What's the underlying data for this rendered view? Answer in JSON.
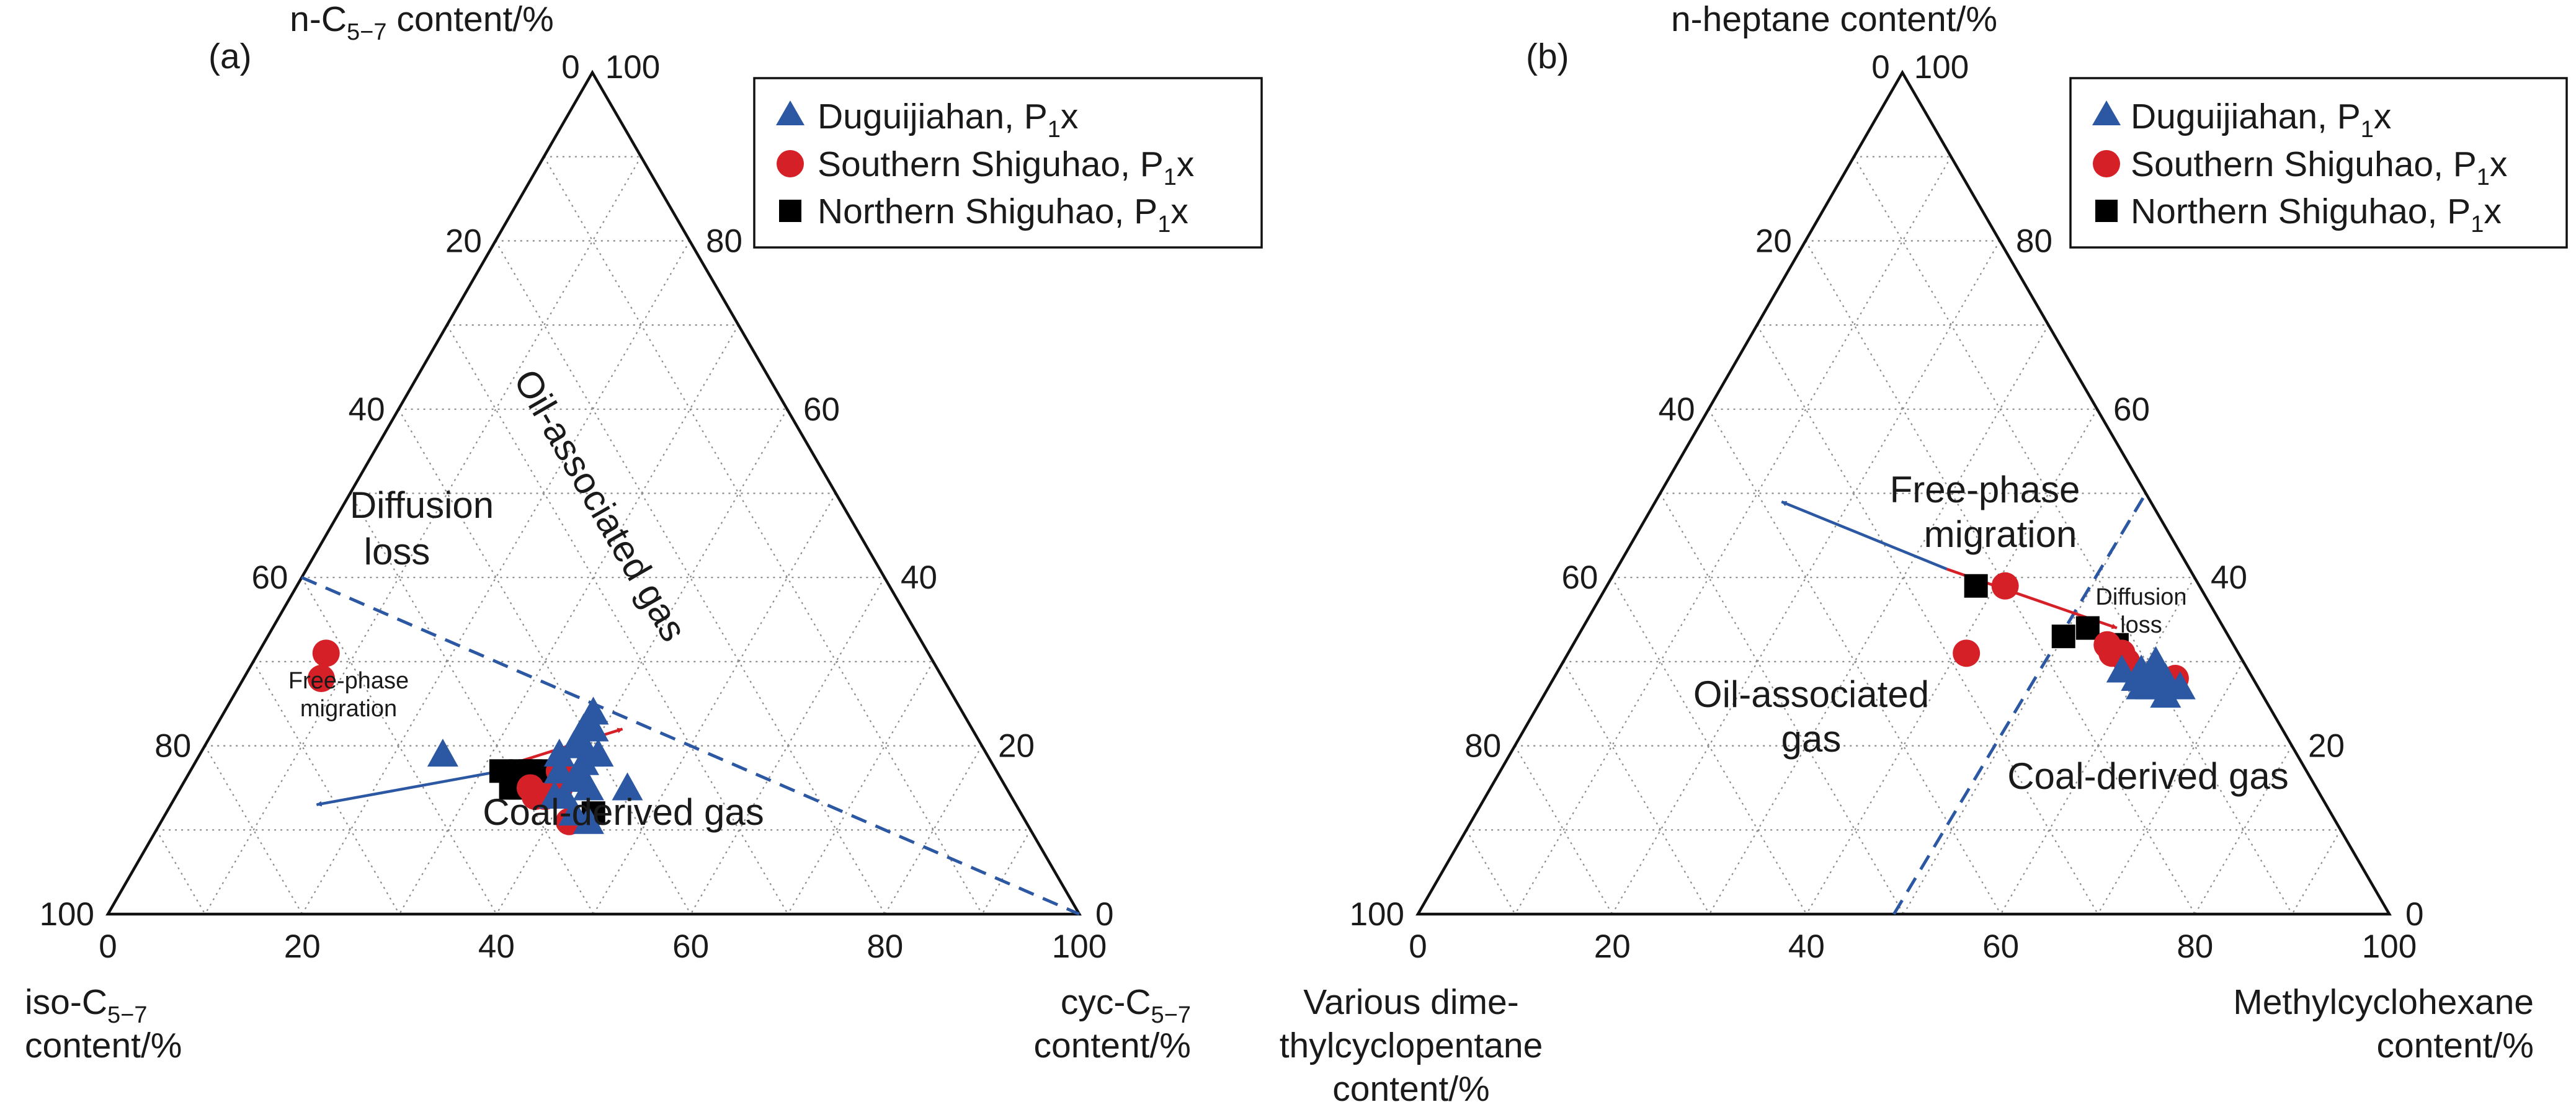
{
  "figure": {
    "colors": {
      "triangle_marker": "#2b57a3",
      "circle_marker": "#d62027",
      "square_marker": "#000000",
      "blue_arrow": "#2b57a3",
      "red_arrow": "#d62027",
      "boundary_line": "#2b57a3"
    }
  },
  "chart_data": [
    {
      "type": "scatter",
      "subtype": "ternary",
      "panel_label": "(a)",
      "axis_top": {
        "title_main": "n-C",
        "title_sub": "5−7",
        "title_tail": " content/%",
        "apex_labels": [
          "0",
          "100"
        ]
      },
      "axis_left": {
        "title_line1_main": "iso-C",
        "title_line1_sub": "5−7",
        "title_line2": "content/%"
      },
      "axis_right": {
        "title_line1_main": "cyc-C",
        "title_line1_sub": "5−7",
        "title_line2": "content/%"
      },
      "ticks_left": [
        "20",
        "40",
        "60",
        "80",
        "100"
      ],
      "ticks_right": [
        "80",
        "60",
        "40",
        "20",
        "0"
      ],
      "ticks_bottom": [
        "0",
        "20",
        "40",
        "60",
        "80",
        "100"
      ],
      "grid": true,
      "legend_position": "top-right",
      "legend": [
        {
          "marker": "triangle",
          "label_main": "Duguijiahan, P",
          "label_sub": "1",
          "label_tail": "x"
        },
        {
          "marker": "circle",
          "label_main": "Southern Shiguhao, P",
          "label_sub": "1",
          "label_tail": "x"
        },
        {
          "marker": "square",
          "label_main": "Northern Shiguhao, P",
          "label_sub": "1",
          "label_tail": "x"
        }
      ],
      "annotations": {
        "oil_region": "Oil-associated gas",
        "coal_region": "Coal-derived gas",
        "diffusion_line1": "Diffusion",
        "diffusion_line2": "loss",
        "freephase_line1": "Free-phase",
        "freephase_line2": "migration"
      },
      "boundary_line": [
        {
          "left": 60,
          "right": 0
        },
        {
          "left": 0,
          "right": 100
        }
      ],
      "arrows": [
        {
          "color": "red",
          "from": {
            "left": 49,
            "right": 33
          },
          "to": {
            "left": 36,
            "right": 42
          }
        },
        {
          "color": "blue",
          "from": {
            "left": 51,
            "right": 32
          },
          "to": {
            "left": 72,
            "right": 15
          }
        }
      ],
      "series": [
        {
          "name": "Duguijiahan, P1x",
          "marker": "triangle",
          "points": [
            {
              "left": 47,
              "right": 39
            },
            {
              "left": 46,
              "right": 40
            },
            {
              "left": 46,
              "right": 42
            },
            {
              "left": 45,
              "right": 44
            },
            {
              "left": 45,
              "right": 38
            },
            {
              "left": 44,
              "right": 40
            },
            {
              "left": 44,
              "right": 37
            },
            {
              "left": 43,
              "right": 40
            },
            {
              "left": 43,
              "right": 42
            },
            {
              "left": 42,
              "right": 40
            },
            {
              "left": 42,
              "right": 38
            },
            {
              "left": 41,
              "right": 38
            },
            {
              "left": 41,
              "right": 40
            },
            {
              "left": 40,
              "right": 38
            },
            {
              "left": 40,
              "right": 41
            },
            {
              "left": 39,
              "right": 39
            },
            {
              "left": 38,
              "right": 38
            },
            {
              "left": 39,
              "right": 46
            },
            {
              "left": 56,
              "right": 25
            }
          ]
        },
        {
          "name": "Southern Shiguhao, P1x",
          "marker": "circle",
          "points": [
            {
              "left": 62,
              "right": 7
            },
            {
              "left": 64,
              "right": 8
            },
            {
              "left": 49,
              "right": 36
            },
            {
              "left": 49,
              "right": 37
            },
            {
              "left": 48,
              "right": 38
            },
            {
              "left": 47,
              "right": 42
            },
            {
              "left": 45,
              "right": 38
            },
            {
              "left": 46,
              "right": 39
            }
          ]
        },
        {
          "name": "Northern Shiguhao, P1x",
          "marker": "square",
          "points": [
            {
              "left": 51,
              "right": 32
            },
            {
              "left": 51,
              "right": 34
            },
            {
              "left": 50,
              "right": 35
            },
            {
              "left": 49,
              "right": 34
            },
            {
              "left": 48,
              "right": 35
            },
            {
              "left": 47,
              "right": 36
            },
            {
              "left": 44,
              "right": 44
            }
          ]
        }
      ]
    },
    {
      "type": "scatter",
      "subtype": "ternary",
      "panel_label": "(b)",
      "axis_top": {
        "title_main": "n-heptane content/%",
        "title_sub": "",
        "title_tail": "",
        "apex_labels": [
          "0",
          "100"
        ]
      },
      "axis_left": {
        "title_line1": "Various dime-",
        "title_line2": "thylcyclopentane",
        "title_line3": "content/%"
      },
      "axis_right": {
        "title_line1": "Methylcyclohexane",
        "title_line2": "content/%"
      },
      "ticks_left": [
        "20",
        "40",
        "60",
        "80",
        "100"
      ],
      "ticks_right": [
        "80",
        "60",
        "40",
        "20",
        "0"
      ],
      "ticks_bottom": [
        "0",
        "20",
        "40",
        "60",
        "80",
        "100"
      ],
      "grid": true,
      "legend_position": "top-right",
      "legend": [
        {
          "marker": "triangle",
          "label_main": "Duguijiahan, P",
          "label_sub": "1",
          "label_tail": "x"
        },
        {
          "marker": "circle",
          "label_main": "Southern Shiguhao, P",
          "label_sub": "1",
          "label_tail": "x"
        },
        {
          "marker": "square",
          "label_main": "Northern Shiguhao, P",
          "label_sub": "1",
          "label_tail": "x"
        }
      ],
      "annotations": {
        "oil_region_line1": "Oil-associated",
        "oil_region_line2": "gas",
        "coal_region": "Coal-derived gas",
        "freephase_line1": "Free-phase",
        "freephase_line2": "migration",
        "diffusion_line1": "Diffusion",
        "diffusion_line2": "loss"
      },
      "boundary_line": [
        {
          "left": 51,
          "right": 49
        },
        {
          "left": 0,
          "right": 50
        }
      ],
      "arrows": [
        {
          "color": "blue",
          "from": {
            "left": 25,
            "right": 34
          },
          "to": {
            "left": 38,
            "right": 13
          }
        },
        {
          "color": "red",
          "from": {
            "left": 25,
            "right": 34
          },
          "to": {
            "left": 11,
            "right": 55
          }
        }
      ],
      "series": [
        {
          "name": "Duguijiahan, P1x",
          "marker": "triangle",
          "points": [
            {
              "left": 13,
              "right": 58
            },
            {
              "left": 12,
              "right": 60
            },
            {
              "left": 12,
              "right": 61
            },
            {
              "left": 11,
              "right": 60
            },
            {
              "left": 10,
              "right": 62
            },
            {
              "left": 9,
              "right": 63
            },
            {
              "left": 10,
              "right": 64
            },
            {
              "left": 8,
              "right": 65
            },
            {
              "left": 9,
              "right": 61
            },
            {
              "left": 11,
              "right": 62
            }
          ]
        },
        {
          "name": "Southern Shiguhao, P1x",
          "marker": "circle",
          "points": [
            {
              "left": 20,
              "right": 41
            },
            {
              "left": 28,
              "right": 41
            },
            {
              "left": 13,
              "right": 55
            },
            {
              "left": 13,
              "right": 56
            },
            {
              "left": 12,
              "right": 57
            },
            {
              "left": 12,
              "right": 58
            },
            {
              "left": 8,
              "right": 64
            }
          ]
        },
        {
          "name": "Northern Shiguhao, P1x",
          "marker": "square",
          "points": [
            {
              "left": 23,
              "right": 38
            },
            {
              "left": 17,
              "right": 50
            },
            {
              "left": 14,
              "right": 52
            },
            {
              "left": 12,
              "right": 56
            }
          ]
        }
      ]
    }
  ]
}
